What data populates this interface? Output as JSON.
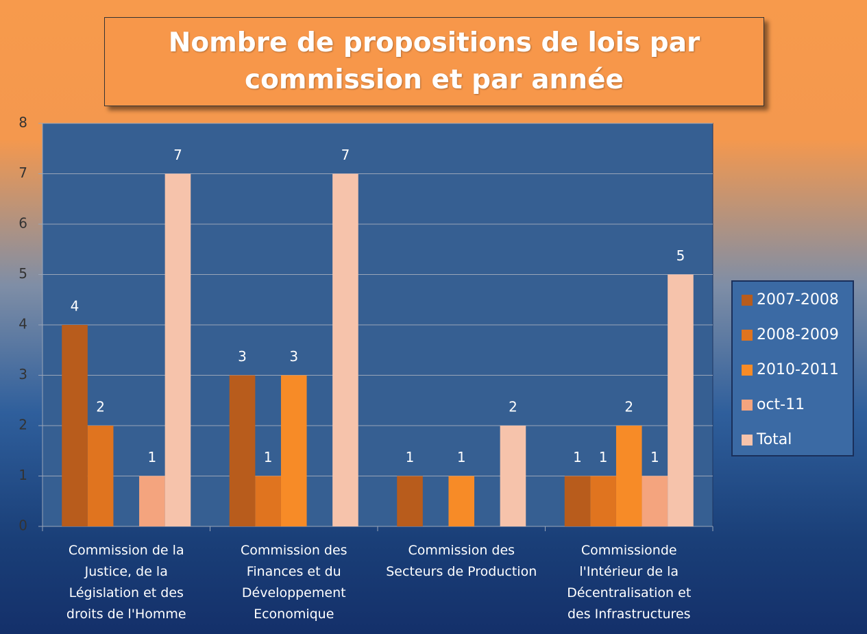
{
  "chart_data": {
    "type": "bar",
    "title": "Nombre de propositions de lois par commission et par année",
    "categories": [
      "Commission de la Justice, de la Législation et des droits de l'Homme",
      "Commission des Finances et du Développement Economique",
      "Commission des Secteurs de Production",
      "Commissionde l'Intérieur de la Décentralisation  et des Infrastructures"
    ],
    "series": [
      {
        "name": "2007-2008",
        "color": "#b85c1c",
        "values": [
          4,
          3,
          1,
          1
        ]
      },
      {
        "name": "2008-2009",
        "color": "#e0741f",
        "values": [
          2,
          1,
          null,
          1
        ]
      },
      {
        "name": "2010-2011",
        "color": "#f78b27",
        "values": [
          null,
          3,
          1,
          2
        ]
      },
      {
        "name": "oct-11",
        "color": "#f4a47e",
        "values": [
          1,
          null,
          null,
          1
        ]
      },
      {
        "name": "Total",
        "color": "#f6c3ab",
        "values": [
          7,
          7,
          2,
          5
        ]
      }
    ],
    "ylim": [
      0,
      8
    ],
    "yticks": [
      0,
      1,
      2,
      3,
      4,
      5,
      6,
      7,
      8
    ],
    "grid": true,
    "legend": "right"
  }
}
